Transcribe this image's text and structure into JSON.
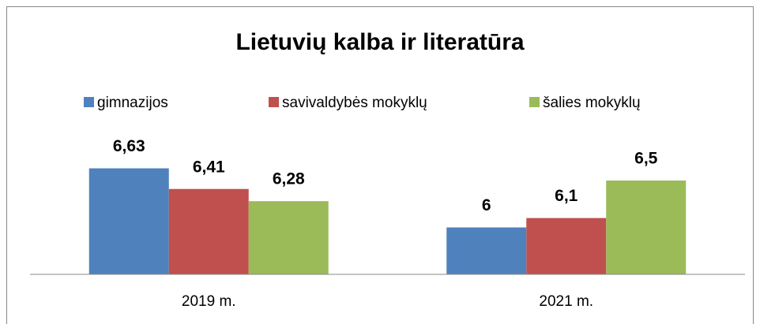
{
  "chart_data": {
    "type": "bar",
    "title": "Lietuvių kalba ir literatūra",
    "categories": [
      "2019 m.",
      "2021 m."
    ],
    "series": [
      {
        "name": "gimnazijos",
        "color": "#4f81bd",
        "values": [
          6.63,
          6
        ],
        "value_labels": [
          "6,63",
          "6"
        ]
      },
      {
        "name": "savivaldybės mokyklų",
        "color": "#c0504d",
        "values": [
          6.41,
          6.1
        ],
        "value_labels": [
          "6,41",
          "6,1"
        ]
      },
      {
        "name": "šalies mokyklų",
        "color": "#9bbb59",
        "values": [
          6.28,
          6.5
        ],
        "value_labels": [
          "6,28",
          "6,5"
        ]
      }
    ],
    "ylim": [
      5.5,
      7
    ],
    "legend": "top"
  }
}
